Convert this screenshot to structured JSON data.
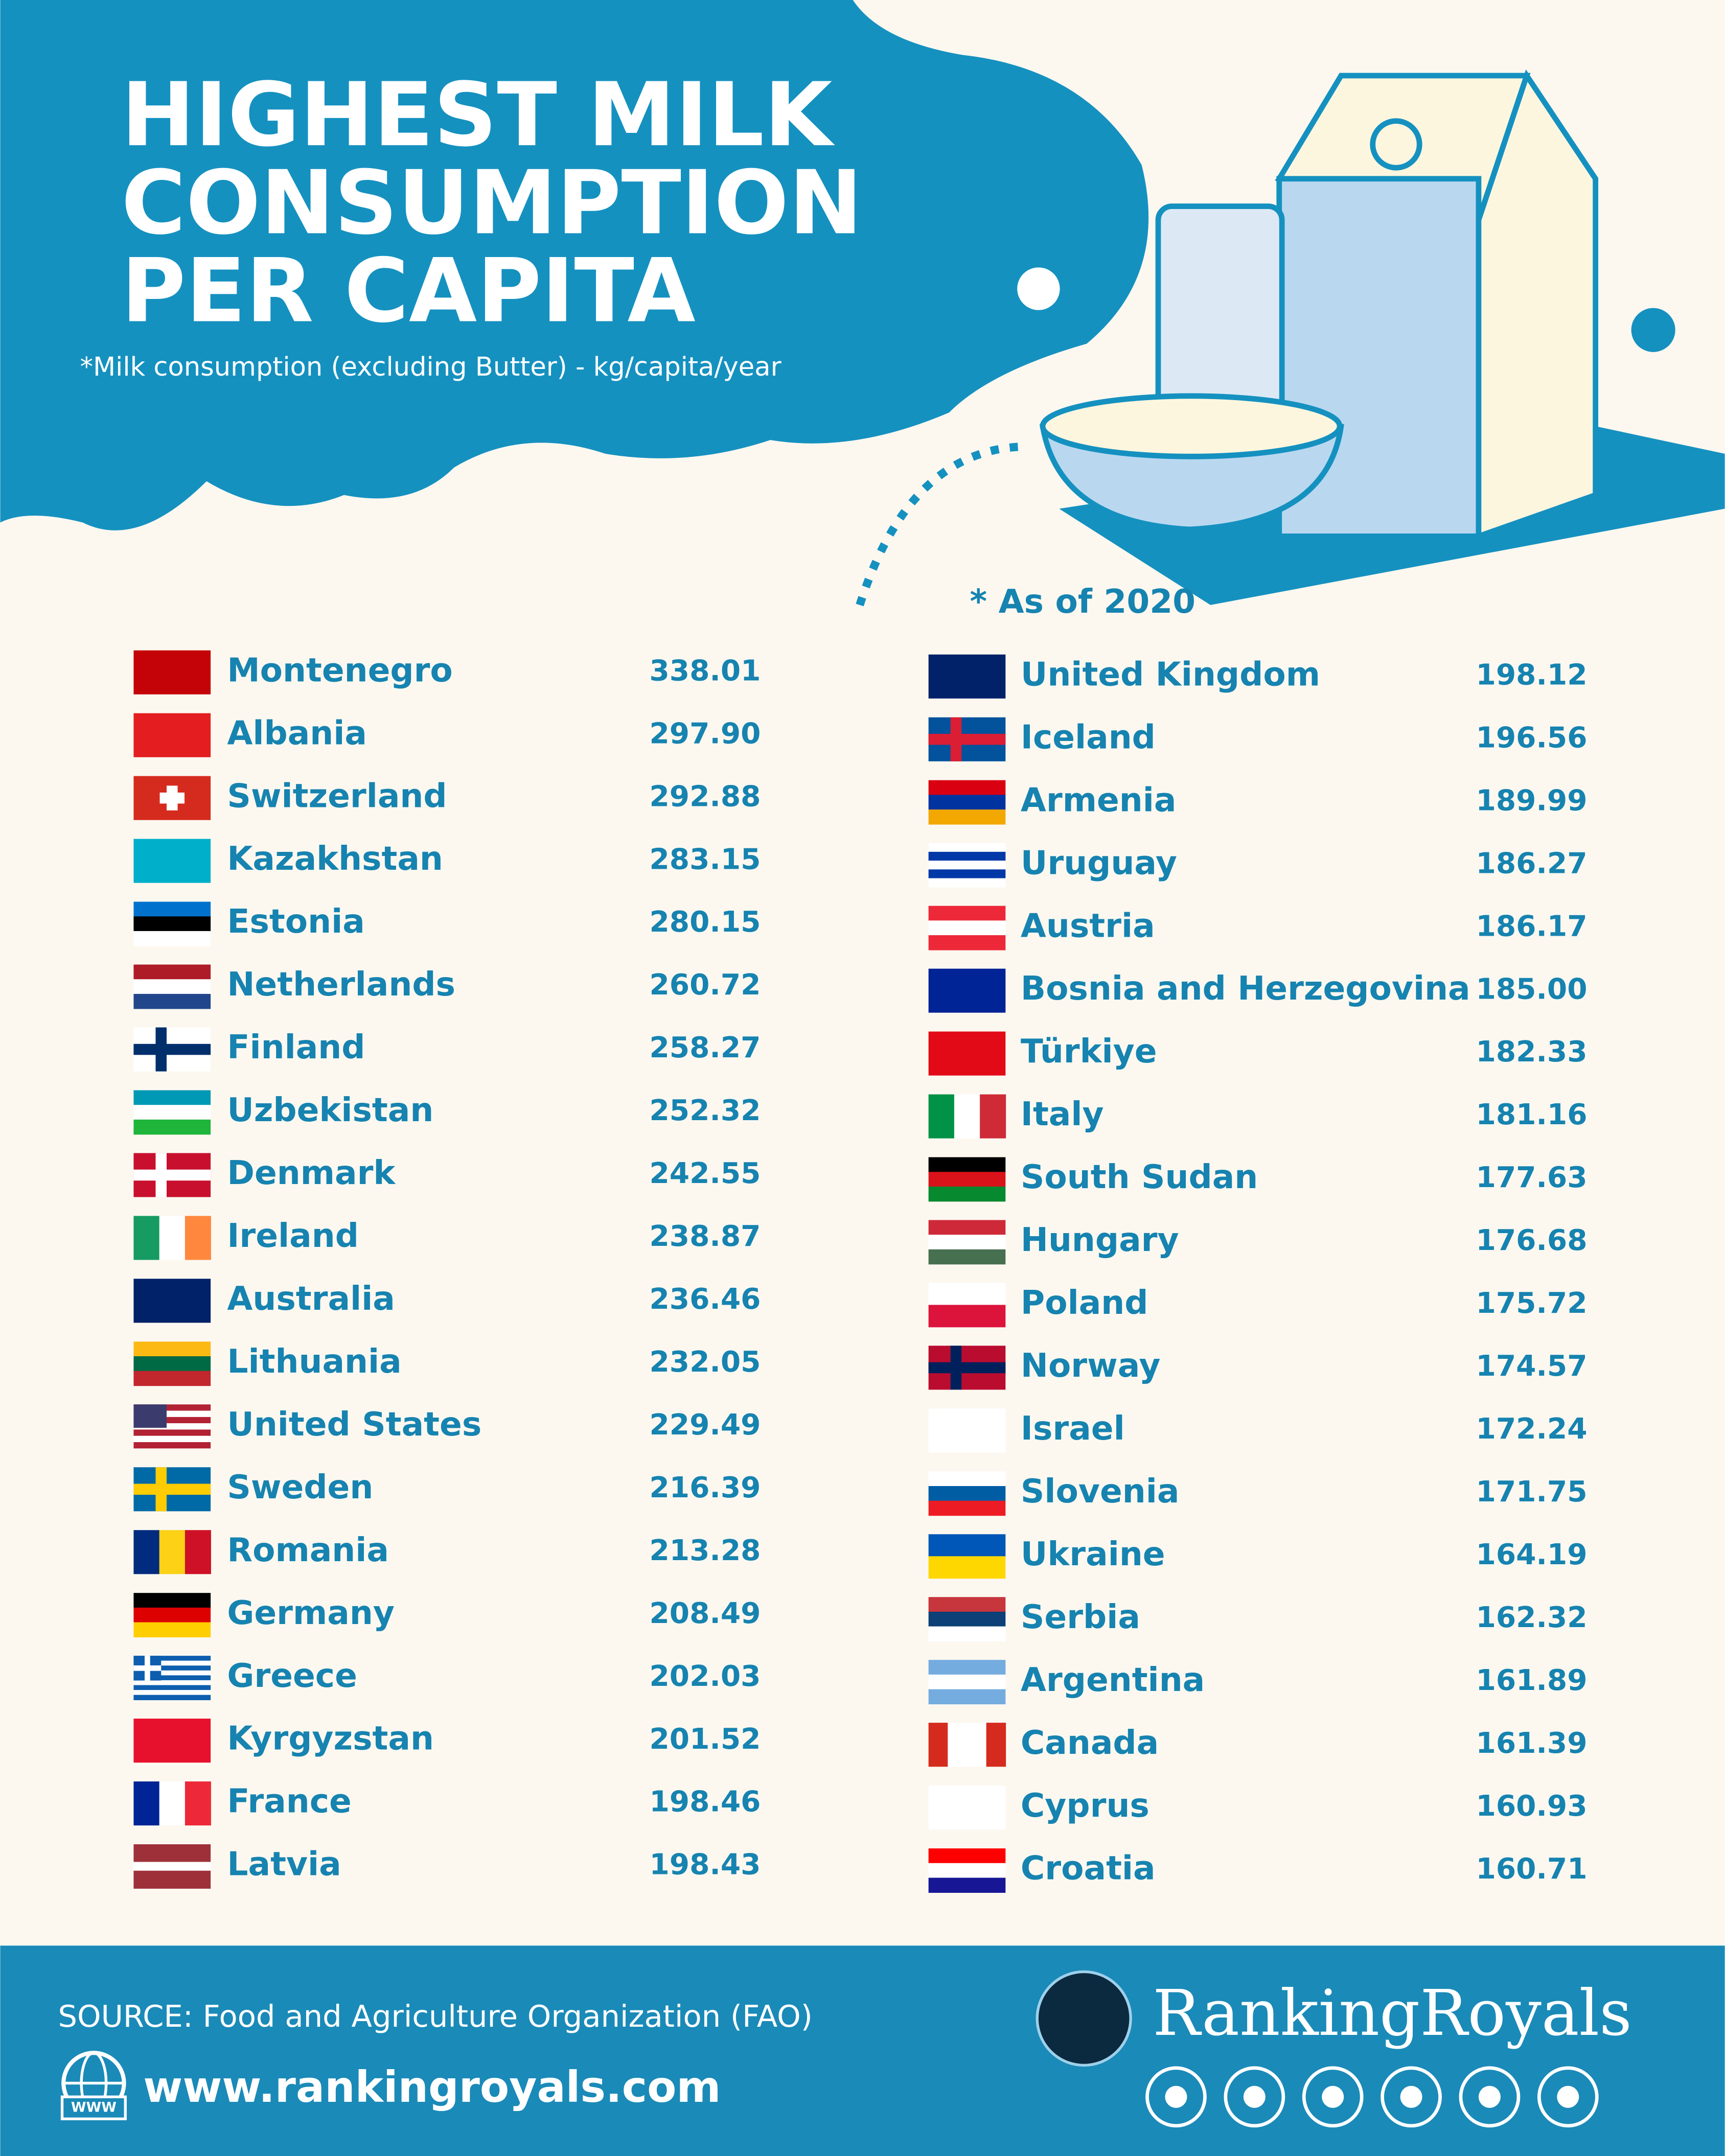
{
  "header": {
    "title": [
      "HIGHEST MILK",
      "CONSUMPTION",
      "PER CAPITA"
    ],
    "subtitle": "*Milk consumption (excluding Butter) - kg/capita/year",
    "note": "* As of 2020"
  },
  "table": {
    "left": [
      [
        "Montenegro",
        "338.01"
      ],
      [
        "Albania",
        "297.90"
      ],
      [
        "Switzerland",
        "292.88"
      ],
      [
        "Kazakhstan",
        "283.15"
      ],
      [
        "Estonia",
        "280.15"
      ],
      [
        "Netherlands",
        "260.72"
      ],
      [
        "Finland",
        "258.27"
      ],
      [
        "Uzbekistan",
        "252.32"
      ],
      [
        "Denmark",
        "242.55"
      ],
      [
        "Ireland",
        "238.87"
      ],
      [
        "Australia",
        "236.46"
      ],
      [
        "Lithuania",
        "232.05"
      ],
      [
        "United States",
        "229.49"
      ],
      [
        "Sweden",
        "216.39"
      ],
      [
        "Romania",
        "213.28"
      ],
      [
        "Germany",
        "208.49"
      ],
      [
        "Greece",
        "202.03"
      ],
      [
        "Kyrgyzstan",
        "201.52"
      ],
      [
        "France",
        "198.46"
      ],
      [
        "Latvia",
        "198.43"
      ]
    ],
    "right": [
      [
        "United Kingdom",
        "198.12"
      ],
      [
        "Iceland",
        "196.56"
      ],
      [
        "Armenia",
        "189.99"
      ],
      [
        "Uruguay",
        "186.27"
      ],
      [
        "Austria",
        "186.17"
      ],
      [
        "Bosnia and Herzegovina",
        "185.00"
      ],
      [
        "Türkiye",
        "182.33"
      ],
      [
        "Italy",
        "181.16"
      ],
      [
        "South Sudan",
        "177.63"
      ],
      [
        "Hungary",
        "176.68"
      ],
      [
        "Poland",
        "175.72"
      ],
      [
        "Norway",
        "174.57"
      ],
      [
        "Israel",
        "172.24"
      ],
      [
        "Slovenia",
        "171.75"
      ],
      [
        "Ukraine",
        "164.19"
      ],
      [
        "Serbia",
        "162.32"
      ],
      [
        "Argentina",
        "161.89"
      ],
      [
        "Canada",
        "161.39"
      ],
      [
        "Cyprus",
        "160.93"
      ],
      [
        "Croatia",
        "160.71"
      ]
    ]
  },
  "footer": {
    "source": "SOURCE: Food and Agriculture Organization (FAO)",
    "globe_label": "WWW",
    "website": "www.rankingroyals.com",
    "brand": "RankingRoyals"
  }
}
